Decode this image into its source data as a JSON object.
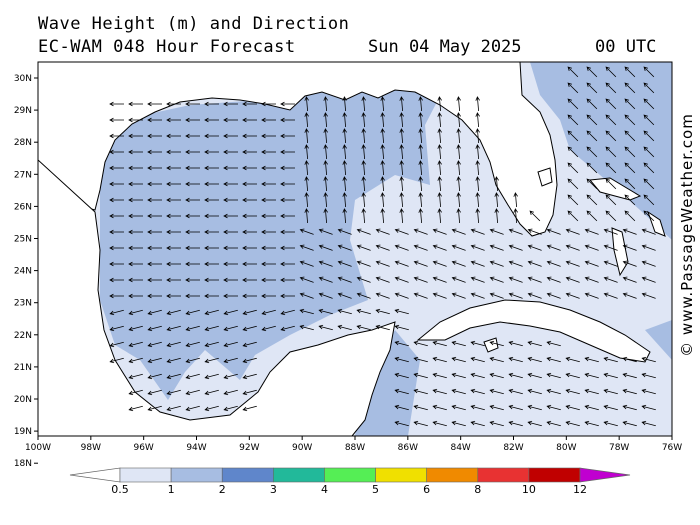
{
  "header": {
    "title_line1": "Wave Height (m) and Direction",
    "title_line2": "EC-WAM 048 Hour Forecast",
    "date": "Sun 04 May 2025",
    "hour": "00 UTC"
  },
  "copyright": "© www.PassageWeather.com",
  "map": {
    "lon_labels": [
      "100W",
      "98W",
      "96W",
      "94W",
      "92W",
      "90W",
      "88W",
      "86W",
      "84W",
      "82W",
      "80W",
      "78W",
      "76W"
    ],
    "lat_labels": [
      "30N",
      "29N",
      "28N",
      "27N",
      "26N",
      "25N",
      "24N",
      "23N",
      "22N",
      "21N",
      "20N",
      "19N",
      "18N"
    ],
    "lon_range": [
      -100,
      -76
    ],
    "lat_range": [
      18,
      30.3
    ],
    "wave_colors": {
      "land": "#ffffff",
      "h05_1": "#dfe6f5",
      "h1_2": "#a7bde2"
    }
  },
  "legend": {
    "labels": [
      "0.5",
      "1",
      "2",
      "3",
      "4",
      "5",
      "6",
      "8",
      "10",
      "12"
    ],
    "colors": [
      "#dfe6f5",
      "#a7bde2",
      "#5f86cb",
      "#22b99a",
      "#55ee55",
      "#f0e000",
      "#f08a00",
      "#e83232",
      "#c00000",
      "#c000d0"
    ]
  }
}
